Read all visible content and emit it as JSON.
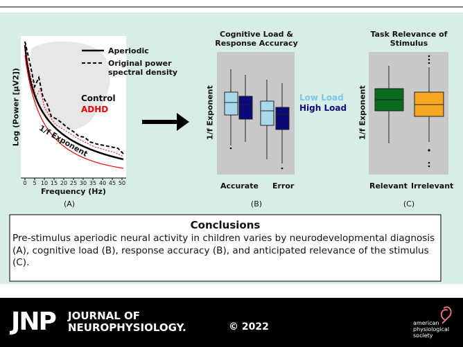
{
  "panel_a": {
    "y_label": "Log (Power [μV2])",
    "x_label": "Frequency (Hz)",
    "xticks": [
      0,
      5,
      10,
      15,
      20,
      25,
      30,
      35,
      40,
      45,
      50
    ],
    "legend": [
      "Aperiodic",
      "Original power spectral density"
    ],
    "groups": [
      "Control",
      "ADHD"
    ],
    "curve_label": "1/f Exponent",
    "caption": "(A)"
  },
  "panel_b": {
    "title": "Cognitive Load & Response Accuracy",
    "y_label": "1/f Exponent",
    "categories": [
      "Accurate",
      "Error"
    ],
    "legend": [
      "Low Load",
      "High Load"
    ],
    "caption": "(B)"
  },
  "panel_c": {
    "title": "Task Relevance of Stimulus",
    "y_label": "1/f Exponent",
    "categories": [
      "Relevant",
      "Irrelevant"
    ],
    "caption": "(C)"
  },
  "conclusions": {
    "title": "Conclusions",
    "text": "Pre-stimulus aperiodic neural activity in children varies by neurodevelopmental diagnosis (A), cognitive load (B), response accuracy (B), and anticipated relevance of the stimulus (C)."
  },
  "footer": {
    "logo": "JNP",
    "journal": "JOURNAL OF NEUROPHYSIOLOGY.",
    "copyright": "© 2022",
    "society": "american physiological society"
  }
}
